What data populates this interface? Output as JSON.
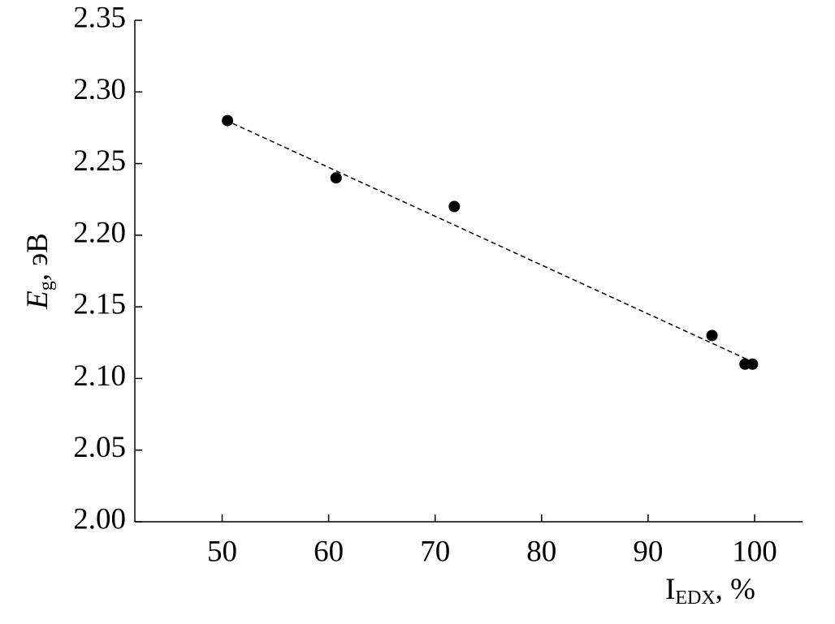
{
  "chart_data": {
    "type": "scatter",
    "xlabel": {
      "main": "I",
      "sub": "EDX",
      "rest": ", %"
    },
    "ylabel": {
      "main": "E",
      "sub": "g",
      "rest": ", эВ"
    },
    "x": [
      50.5,
      60.7,
      71.8,
      96.0,
      99.1,
      99.8
    ],
    "values": [
      2.28,
      2.24,
      2.22,
      2.13,
      2.11,
      2.11
    ],
    "color": "#000000",
    "trendline": {
      "x": [
        51.0,
        99.7
      ],
      "values": [
        2.278,
        2.112
      ],
      "color": "#000000",
      "dashed": true
    },
    "xlim": [
      41.8,
      104.5
    ],
    "ylim": [
      2.0,
      2.35
    ],
    "xticks": [
      50,
      60,
      70,
      80,
      90,
      100
    ],
    "yticks": [
      {
        "value": 2.0,
        "label": "2.00"
      },
      2.05,
      {
        "value": 2.1,
        "label": "2.10"
      },
      2.15,
      {
        "value": 2.2,
        "label": "2.20"
      },
      2.25,
      {
        "value": 2.3,
        "label": "2.30"
      },
      2.35
    ],
    "grid": false
  }
}
